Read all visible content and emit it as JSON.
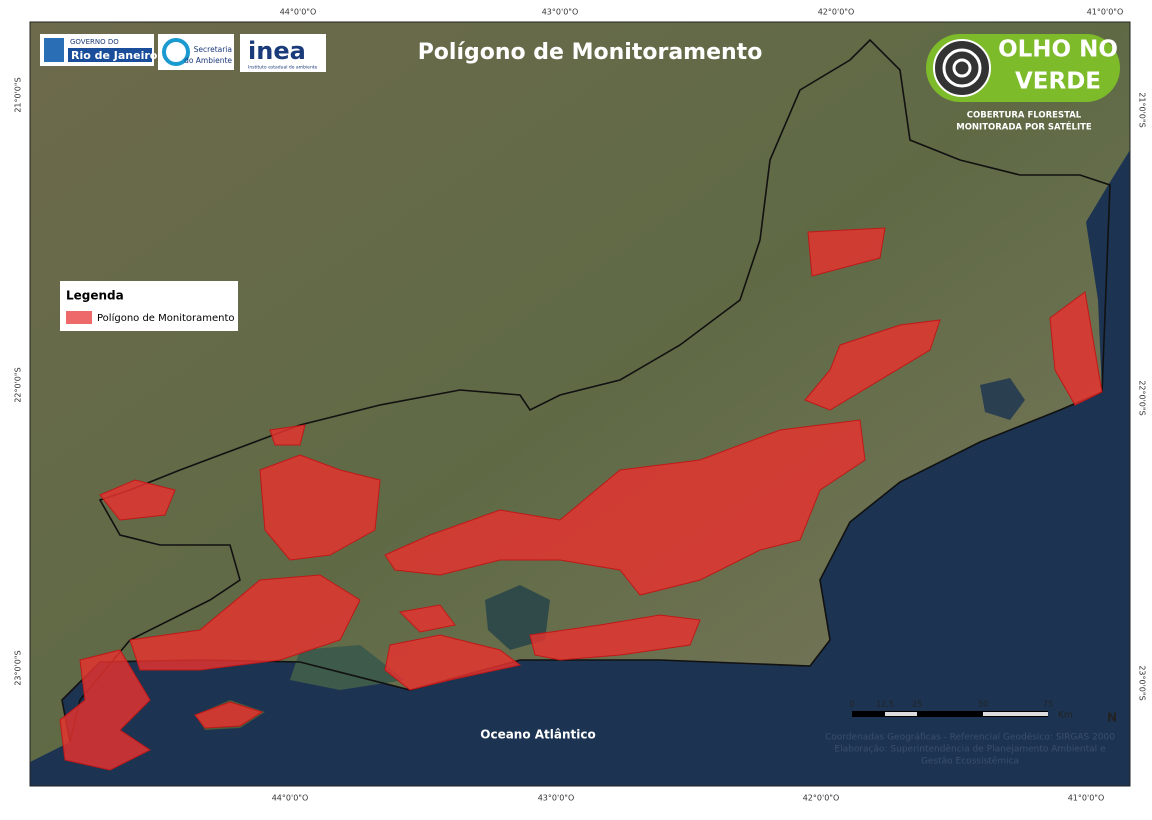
{
  "header": {
    "title": "Polígono de Monitoramento"
  },
  "logos": {
    "gov_line1": "GOVERNO DO",
    "gov_line2": "Rio de Janeiro",
    "sea_line1": "Secretaria",
    "sea_line2": "do Ambiente",
    "inea": "inea",
    "inea_sub": "Instituto estadual do ambiente",
    "olho_line1": "OLHO NO",
    "olho_line2": "VERDE",
    "olho_sub1": "COBERTURA FLORESTAL",
    "olho_sub2": "MONITORADA POR SATÉLITE"
  },
  "grid": {
    "top": [
      "44°0'0\"O",
      "43°0'0\"O",
      "42°0'0\"O",
      "41°0'0\"O"
    ],
    "bottom": [
      "44°0'0\"O",
      "43°0'0\"O",
      "42°0'0\"O",
      "41°0'0\"O"
    ],
    "left": [
      "21°0'0\"S",
      "22°0'0\"S",
      "23°0'0\"S"
    ],
    "right": [
      "21°0'0\"S",
      "22°0'0\"S",
      "23°0'0\"S"
    ]
  },
  "legend": {
    "title": "Legenda",
    "item": "Polígono de Monitoramento"
  },
  "labels": {
    "ocean": "Oceano Atlântico",
    "north": "N"
  },
  "scale": {
    "ticks": [
      "0",
      "12,5",
      "25",
      "50",
      "75"
    ],
    "unit": "Km"
  },
  "credits": [
    "Coordenadas Geográficas - Referencial Geodésico: SIRGAS 2000",
    "Elaboração: Superintendência de Planejamento Ambiental e",
    "Gestão Ecossistêmica"
  ]
}
